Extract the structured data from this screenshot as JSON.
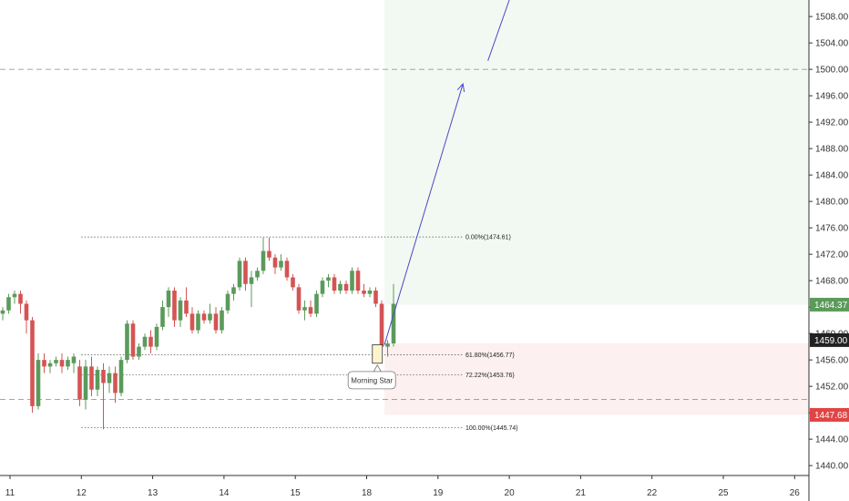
{
  "chart_data": {
    "type": "candlestick",
    "title": "",
    "ylim": [
      1438.5,
      1510.5
    ],
    "y_ticks": [
      "1508.00",
      "1504.00",
      "1500.00",
      "1496.00",
      "1492.00",
      "1488.00",
      "1484.00",
      "1480.00",
      "1476.00",
      "1472.00",
      "1468.00",
      "1464.00",
      "1460.00",
      "1456.00",
      "1452.00",
      "1448.00",
      "1444.00",
      "1440.00"
    ],
    "x_ticks": [
      {
        "label": "11",
        "d": 0
      },
      {
        "label": "12",
        "d": 1
      },
      {
        "label": "13",
        "d": 2
      },
      {
        "label": "14",
        "d": 3
      },
      {
        "label": "15",
        "d": 4
      },
      {
        "label": "18",
        "d": 5
      },
      {
        "label": "19",
        "d": 6
      },
      {
        "label": "20",
        "d": 7
      },
      {
        "label": "21",
        "d": 8
      },
      {
        "label": "22",
        "d": 9
      },
      {
        "label": "25",
        "d": 10
      },
      {
        "label": "26",
        "d": 11
      }
    ],
    "grid": false,
    "up_color": "#5b9a5b",
    "down_color": "#d45454",
    "candles": [
      [
        1463.0,
        1464.0,
        1462.0,
        1463.5
      ],
      [
        1463.5,
        1466.0,
        1463.0,
        1465.5
      ],
      [
        1465.5,
        1466.5,
        1464.5,
        1466.0
      ],
      [
        1466.0,
        1466.5,
        1463.0,
        1464.5
      ],
      [
        1464.5,
        1465.0,
        1460.0,
        1462.0
      ],
      [
        1462.0,
        1462.5,
        1448.0,
        1449.0
      ],
      [
        1449.0,
        1457.0,
        1448.5,
        1456.0
      ],
      [
        1456.0,
        1457.0,
        1454.0,
        1455.0
      ],
      [
        1455.0,
        1456.0,
        1454.0,
        1455.5
      ],
      [
        1455.5,
        1456.5,
        1455.0,
        1456.0
      ],
      [
        1456.0,
        1457.0,
        1454.0,
        1455.0
      ],
      [
        1455.0,
        1456.5,
        1454.5,
        1456.0
      ],
      [
        1455.5,
        1457.0,
        1454.0,
        1456.5
      ],
      [
        1455.0,
        1456.0,
        1449.0,
        1450.0
      ],
      [
        1450.0,
        1456.0,
        1448.5,
        1455.0
      ],
      [
        1455.0,
        1456.5,
        1450.5,
        1451.5
      ],
      [
        1451.5,
        1455.0,
        1450.5,
        1454.5
      ],
      [
        1454.5,
        1455.5,
        1445.5,
        1452.5
      ],
      [
        1452.5,
        1455.0,
        1451.0,
        1454.0
      ],
      [
        1454.0,
        1455.0,
        1449.5,
        1451.0
      ],
      [
        1451.0,
        1456.5,
        1450.5,
        1456.0
      ],
      [
        1456.0,
        1462.0,
        1455.5,
        1461.5
      ],
      [
        1461.5,
        1462.0,
        1456.0,
        1456.5
      ],
      [
        1456.5,
        1458.5,
        1456.0,
        1458.0
      ],
      [
        1458.0,
        1460.0,
        1457.5,
        1459.5
      ],
      [
        1459.5,
        1460.5,
        1457.0,
        1458.0
      ],
      [
        1458.0,
        1461.5,
        1457.5,
        1461.0
      ],
      [
        1461.0,
        1465.0,
        1460.5,
        1464.0
      ],
      [
        1464.0,
        1467.0,
        1462.5,
        1466.5
      ],
      [
        1466.5,
        1467.0,
        1461.0,
        1462.0
      ],
      [
        1462.0,
        1465.5,
        1461.0,
        1465.0
      ],
      [
        1465.0,
        1467.0,
        1462.5,
        1463.0
      ],
      [
        1463.0,
        1464.0,
        1460.0,
        1460.5
      ],
      [
        1460.5,
        1463.5,
        1460.0,
        1463.0
      ],
      [
        1463.0,
        1463.5,
        1461.5,
        1462.0
      ],
      [
        1462.0,
        1464.5,
        1461.5,
        1463.0
      ],
      [
        1463.0,
        1464.0,
        1460.0,
        1460.5
      ],
      [
        1460.5,
        1464.0,
        1460.0,
        1463.5
      ],
      [
        1463.5,
        1466.5,
        1463.0,
        1466.0
      ],
      [
        1466.0,
        1467.5,
        1465.0,
        1467.0
      ],
      [
        1467.0,
        1471.5,
        1466.5,
        1471.0
      ],
      [
        1471.0,
        1471.5,
        1466.5,
        1467.5
      ],
      [
        1467.5,
        1469.5,
        1464.0,
        1468.5
      ],
      [
        1468.5,
        1470.0,
        1468.0,
        1469.5
      ],
      [
        1469.5,
        1474.5,
        1469.0,
        1472.5
      ],
      [
        1472.5,
        1474.5,
        1471.0,
        1471.5
      ],
      [
        1471.5,
        1472.0,
        1469.0,
        1470.0
      ],
      [
        1470.0,
        1472.0,
        1469.5,
        1471.0
      ],
      [
        1471.0,
        1471.5,
        1468.0,
        1468.5
      ],
      [
        1468.5,
        1469.0,
        1466.5,
        1467.0
      ],
      [
        1467.0,
        1467.5,
        1463.0,
        1463.5
      ],
      [
        1463.5,
        1465.0,
        1462.0,
        1464.0
      ],
      [
        1464.0,
        1465.0,
        1462.5,
        1463.0
      ],
      [
        1463.0,
        1466.5,
        1462.5,
        1466.0
      ],
      [
        1466.0,
        1468.5,
        1465.5,
        1468.0
      ],
      [
        1468.0,
        1469.0,
        1467.0,
        1468.5
      ],
      [
        1468.5,
        1469.0,
        1466.0,
        1466.5
      ],
      [
        1466.5,
        1468.0,
        1466.0,
        1467.5
      ],
      [
        1467.5,
        1468.0,
        1466.0,
        1466.5
      ],
      [
        1466.5,
        1470.0,
        1466.0,
        1469.5
      ],
      [
        1469.5,
        1470.0,
        1466.0,
        1466.5
      ],
      [
        1466.5,
        1467.5,
        1465.5,
        1466.0
      ],
      [
        1466.0,
        1467.0,
        1465.5,
        1466.5
      ],
      [
        1466.5,
        1467.0,
        1464.0,
        1464.5
      ],
      [
        1464.5,
        1465.0,
        1457.0,
        1458.0
      ],
      [
        1458.0,
        1459.0,
        1456.5,
        1458.5
      ],
      [
        1458.5,
        1467.5,
        1458.0,
        1464.5
      ]
    ],
    "fib_levels": [
      {
        "label": "0.00%(1474.61)",
        "value": 1474.61
      },
      {
        "label": "61.80%(1456.77)",
        "value": 1456.77
      },
      {
        "label": "72.22%(1453.76)",
        "value": 1453.76
      },
      {
        "label": "100.00%(1445.74)",
        "value": 1445.74
      }
    ],
    "horizontal_lines": [
      1500.0,
      1450.0
    ],
    "target_zone": {
      "top": 1510.5,
      "bottom": 1464.37,
      "color": "#eaf5ea"
    },
    "stop_zone": {
      "top": 1458.5,
      "bottom": 1447.68,
      "color": "#fdecec"
    },
    "projection_arrows": [
      {
        "from": [
          5.25,
          1458.3
        ],
        "to": [
          6.35,
          1497.8
        ]
      },
      {
        "from": [
          6.7,
          1501.3
        ],
        "to": [
          7.0,
          1510.5
        ]
      }
    ],
    "pattern_box": {
      "x0": 5.08,
      "x1": 5.22,
      "y0": 1458.3,
      "y1": 1455.5,
      "color": "#fdf4cf"
    },
    "annotation": {
      "text": "Morning Star",
      "x": 5.06,
      "y": 1453.0
    },
    "price_badges": [
      {
        "label": "1464.37",
        "value": 1464.37,
        "color": "#5b9a5b"
      },
      {
        "label": "1459.00",
        "value": 1459.0,
        "color": "#222222"
      },
      {
        "label": "1447.68",
        "value": 1447.68,
        "color": "#e04444"
      }
    ]
  }
}
